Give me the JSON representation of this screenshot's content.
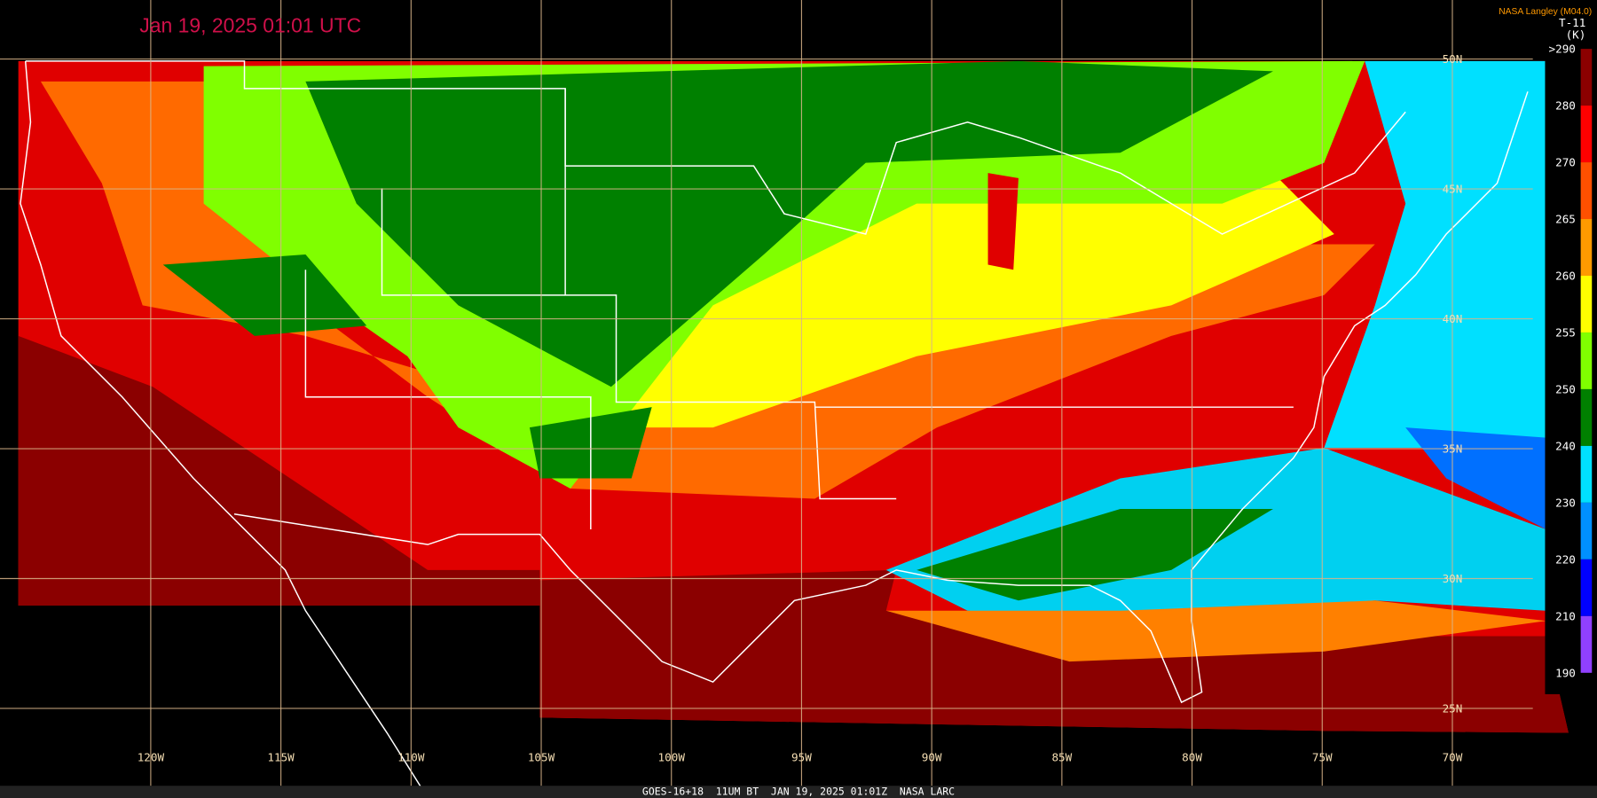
{
  "header": {
    "title": "Jan 19, 2025 01:01 UTC",
    "credit": "NASA Langley (M04.0)"
  },
  "colorbar": {
    "title": "T-11",
    "unit": "(K)",
    "labels": [
      ">290",
      "280",
      "270",
      "265",
      "260",
      "255",
      "250",
      "240",
      "230",
      "220",
      "210",
      "190"
    ],
    "colors": [
      "#8b0000",
      "#ff0000",
      "#ff5000",
      "#ff9a00",
      "#ffff00",
      "#80ff00",
      "#008000",
      "#00e0ff",
      "#0090ff",
      "#0000ff",
      "#9040ff"
    ]
  },
  "grid": {
    "longitudes": [
      "120W",
      "115W",
      "110W",
      "105W",
      "100W",
      "95W",
      "90W",
      "85W",
      "80W",
      "75W",
      "70W"
    ],
    "latitudes": [
      "50N",
      "45N",
      "40N",
      "35N",
      "30N",
      "25N"
    ]
  },
  "footer": {
    "text": "GOES-16+18  11UM BT  JAN 19, 2025 01:01Z  NASA LARC"
  }
}
